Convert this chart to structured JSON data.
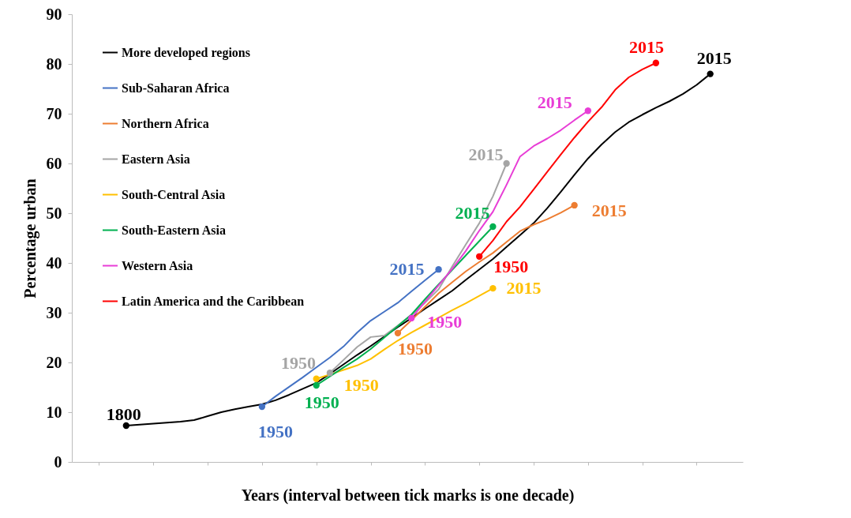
{
  "chart_data": {
    "type": "line",
    "xlabel": "Years (interval between tick marks is one decade)",
    "ylabel": "Percentage  urban",
    "categories": [
      null,
      null,
      null,
      null,
      null,
      null,
      null,
      null,
      null,
      null,
      null,
      null,
      null,
      null,
      null,
      null,
      null,
      null,
      null,
      null,
      null,
      null,
      null,
      null,
      null,
      null,
      null,
      null,
      null,
      null,
      null,
      null,
      null,
      null,
      null,
      null,
      null,
      null,
      null,
      null,
      null,
      null,
      null,
      null,
      null,
      null,
      null
    ],
    "ylim": [
      0,
      90
    ],
    "yticks": [
      0,
      10,
      20,
      30,
      40,
      50,
      60,
      70,
      80,
      90
    ],
    "grid": false,
    "legend": "top left",
    "line_style": "solid",
    "series": [
      {
        "name": "More developed regions",
        "color": "#000000",
        "values": [
          null,
          null,
          7.3,
          7.5,
          7.7,
          7.9,
          8.1,
          8.4,
          9.2,
          10,
          10.6,
          11.1,
          11.6,
          12.4,
          13.5,
          14.7,
          15.9,
          17.7,
          19.6,
          21.5,
          23.3,
          25.2,
          27.1,
          28.9,
          30.8,
          32.6,
          34.4,
          36.6,
          38.7,
          40.8,
          43.2,
          45.6,
          48,
          51,
          54.3,
          57.7,
          61,
          63.8,
          66.3,
          68.3,
          69.8,
          71.2,
          72.5,
          74,
          75.8,
          78,
          null
        ]
      },
      {
        "name": "Sub-Saharan Africa",
        "color": "#4472c4",
        "values": [
          null,
          null,
          null,
          null,
          null,
          null,
          null,
          null,
          null,
          null,
          null,
          null,
          11.1,
          13.2,
          15.1,
          17,
          19,
          21,
          23.2,
          26,
          28.4,
          30.2,
          32,
          34.3,
          36.5,
          38.7,
          null,
          null,
          null,
          null,
          null,
          null,
          null,
          null,
          null,
          null,
          null,
          null,
          null,
          null,
          null,
          null,
          null,
          null,
          null,
          null,
          null
        ]
      },
      {
        "name": "Northern Africa",
        "color": "#ed7d31",
        "values": [
          null,
          null,
          null,
          null,
          null,
          null,
          null,
          null,
          null,
          null,
          null,
          null,
          null,
          null,
          null,
          null,
          null,
          null,
          null,
          null,
          null,
          null,
          25.9,
          28.5,
          31.2,
          33.9,
          36.1,
          38.3,
          40.2,
          42,
          44.2,
          46.4,
          47.7,
          48.8,
          50.1,
          51.6,
          null,
          null,
          null,
          null,
          null,
          null,
          null,
          null,
          null,
          null,
          null
        ]
      },
      {
        "name": "Eastern Asia",
        "color": "#a5a5a5",
        "values": [
          null,
          null,
          null,
          null,
          null,
          null,
          null,
          null,
          null,
          null,
          null,
          null,
          null,
          null,
          null,
          null,
          null,
          17.9,
          20.5,
          23.1,
          25.1,
          25.4,
          27.4,
          29.6,
          32,
          34.7,
          39.3,
          43.7,
          48,
          53.4,
          60,
          null,
          null,
          null,
          null,
          null,
          null,
          null,
          null,
          null,
          null,
          null,
          null,
          null,
          null,
          null,
          null
        ]
      },
      {
        "name": "South-Central Asia",
        "color": "#ffc000",
        "values": [
          null,
          null,
          null,
          null,
          null,
          null,
          null,
          null,
          null,
          null,
          null,
          null,
          null,
          null,
          null,
          null,
          16.7,
          17.6,
          18.5,
          19.4,
          20.7,
          22.6,
          24.4,
          26,
          27.5,
          29,
          30.5,
          31.9,
          33.4,
          34.9,
          null,
          null,
          null,
          null,
          null,
          null,
          null,
          null,
          null,
          null,
          null,
          null,
          null,
          null,
          null,
          null,
          null
        ]
      },
      {
        "name": "South-Eastern Asia",
        "color": "#00b050",
        "values": [
          null,
          null,
          null,
          null,
          null,
          null,
          null,
          null,
          null,
          null,
          null,
          null,
          null,
          null,
          null,
          null,
          15.4,
          17.2,
          19,
          20.7,
          22.7,
          25,
          27.3,
          29.6,
          32.7,
          35.7,
          38.6,
          41.5,
          44.4,
          47.3,
          null,
          null,
          null,
          null,
          null,
          null,
          null,
          null,
          null,
          null,
          null,
          null,
          null,
          null,
          null,
          null,
          null
        ]
      },
      {
        "name": "Western Asia",
        "color": "#e83dd6",
        "values": [
          null,
          null,
          null,
          null,
          null,
          null,
          null,
          null,
          null,
          null,
          null,
          null,
          null,
          null,
          null,
          null,
          null,
          null,
          null,
          null,
          null,
          null,
          null,
          28.9,
          32.2,
          35.5,
          38.8,
          42.4,
          46.5,
          50.3,
          55.7,
          61.4,
          63.5,
          65,
          66.7,
          68.7,
          70.6,
          null,
          null,
          null,
          null,
          null,
          null,
          null,
          null,
          null,
          null
        ]
      },
      {
        "name": "Latin America and the Caribbean",
        "color": "#ff0000",
        "values": [
          null,
          null,
          null,
          null,
          null,
          null,
          null,
          null,
          null,
          null,
          null,
          null,
          null,
          null,
          null,
          null,
          null,
          null,
          null,
          null,
          null,
          null,
          null,
          null,
          null,
          null,
          null,
          null,
          41.3,
          44.5,
          48.3,
          51.3,
          54.8,
          58.3,
          61.8,
          65.2,
          68.4,
          71.3,
          74.8,
          77.3,
          78.9,
          80.2,
          null,
          null,
          null,
          null,
          null
        ]
      }
    ],
    "annotations": [
      "1800",
      "2015",
      "1950",
      "2015",
      "1950",
      "2015",
      "1950",
      "2015",
      "1950",
      "2015",
      "1950",
      "2015",
      "1950",
      "2015",
      "1950",
      "2015"
    ]
  }
}
